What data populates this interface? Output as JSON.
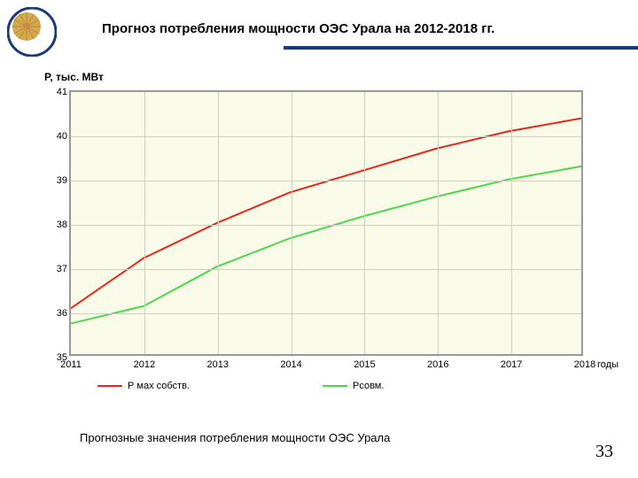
{
  "title": "Прогноз потребления мощности ОЭС Урала на 2012-2018 гг.",
  "title_fontsize": 15,
  "title_color": "#000000",
  "title_underline_color": "#1a3a7a",
  "logo": {
    "outer_color": "#1a3a7a",
    "inner_colors": [
      "#d4a84c",
      "#c09040"
    ],
    "type": "circular-sunburst"
  },
  "chart": {
    "type": "line",
    "background_color": "#fafae8",
    "border_color": "#999999",
    "grid_color": "#d0d0c0",
    "ylabel": "Р, тыс. МВт",
    "ylabel_fontsize": 12,
    "ylabel_weight": "bold",
    "xlabel": "годы",
    "xlabel_fontsize": 11,
    "xlim": [
      2011,
      2018
    ],
    "ylim": [
      35,
      41
    ],
    "xticks": [
      2011,
      2012,
      2013,
      2014,
      2015,
      2016,
      2017,
      2018
    ],
    "yticks": [
      35,
      36,
      37,
      38,
      39,
      40,
      41
    ],
    "tick_fontsize": 11,
    "series": [
      {
        "name": "Р мах собств.",
        "color": "#e8261c",
        "line_width": 2,
        "x": [
          2011,
          2012,
          2013,
          2014,
          2015,
          2016,
          2017,
          2018
        ],
        "y": [
          36.05,
          37.2,
          38.0,
          38.7,
          39.2,
          39.7,
          40.1,
          40.4
        ]
      },
      {
        "name": "Рсовм.",
        "color": "#4ad84a",
        "line_width": 2,
        "x": [
          2011,
          2012,
          2013,
          2014,
          2015,
          2016,
          2017,
          2018
        ],
        "y": [
          35.7,
          36.1,
          37.0,
          37.65,
          38.15,
          38.6,
          39.0,
          39.3
        ]
      }
    ]
  },
  "legend": {
    "items": [
      {
        "label": "Р мах собств.",
        "color": "#e8261c"
      },
      {
        "label": "Рсовм.",
        "color": "#4ad84a"
      }
    ],
    "fontsize": 11
  },
  "subtitle": "Прогнозные значения потребления мощности ОЭС Урала",
  "subtitle_fontsize": 13,
  "page_number": "33",
  "page_number_fontsize": 20
}
